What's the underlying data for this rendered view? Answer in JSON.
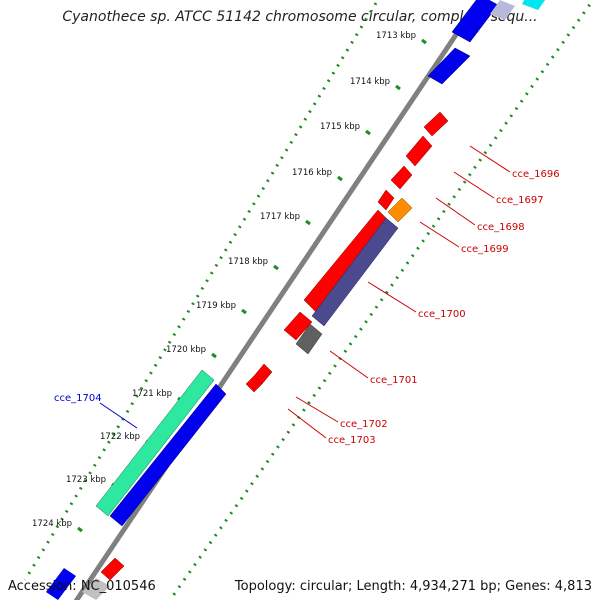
{
  "title": "Cyanothece sp. ATCC 51142 chromosome circular, complete sequ...",
  "footer": {
    "accession": "Accession: NC_010546",
    "topology": "Topology: circular; Length: 4,934,271 bp; Genes: 4,813"
  },
  "colors": {
    "backbone": "#808080",
    "tick": "#228b22",
    "forward_gene": "#ff0000",
    "reverse_gene": "#0000ee",
    "highlight_gene": "#ff8c00",
    "slate_gene": "#4b4a8f",
    "gray_gene": "#606060",
    "spring_gene": "#2ee8a0",
    "cyan_gene": "#00e5ee",
    "red_label": "#cc0000",
    "blue_label": "#0000cc"
  },
  "scale_labels": [
    "1713 kbp",
    "1714 kbp",
    "1715 kbp",
    "1716 kbp",
    "1717 kbp",
    "1718 kbp",
    "1719 kbp",
    "1720 kbp",
    "1721 kbp",
    "1722 kbp",
    "1723 kbp",
    "1724 kbp"
  ],
  "gene_labels": [
    {
      "name": "cce_1696",
      "color": "red"
    },
    {
      "name": "cce_1697",
      "color": "red"
    },
    {
      "name": "cce_1698",
      "color": "red"
    },
    {
      "name": "cce_1699",
      "color": "red"
    },
    {
      "name": "cce_1700",
      "color": "red"
    },
    {
      "name": "cce_1701",
      "color": "red"
    },
    {
      "name": "cce_1702",
      "color": "red"
    },
    {
      "name": "cce_1703",
      "color": "red"
    },
    {
      "name": "cce_1704",
      "color": "blue"
    }
  ]
}
